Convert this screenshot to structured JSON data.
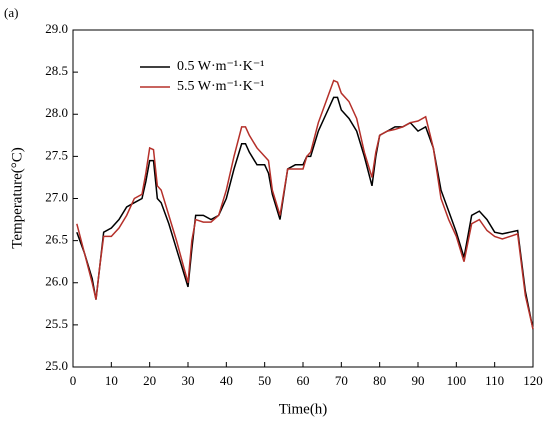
{
  "chart_data": {
    "type": "line",
    "panel_label": "(a)",
    "x_label": "Time(h)",
    "y_label": "Temperature(°C)",
    "x": [
      1,
      3,
      5,
      6,
      7,
      8,
      10,
      12,
      14,
      16,
      18,
      19,
      20,
      21,
      22,
      23,
      25,
      27,
      30,
      31,
      32,
      34,
      36,
      38,
      40,
      42,
      44,
      45,
      46,
      48,
      50,
      51,
      52,
      54,
      56,
      58,
      60,
      61,
      62,
      64,
      66,
      68,
      69,
      70,
      72,
      74,
      76,
      78,
      79,
      80,
      82,
      84,
      86,
      88,
      90,
      92,
      94,
      96,
      98,
      100,
      102,
      104,
      106,
      108,
      110,
      112,
      114,
      116,
      118,
      120
    ],
    "series": [
      {
        "name": "0.5 W·m⁻¹·K⁻¹",
        "color": "#000000",
        "values": [
          26.6,
          26.35,
          26.05,
          25.8,
          26.2,
          26.6,
          26.65,
          26.75,
          26.9,
          26.95,
          27.0,
          27.2,
          27.45,
          27.45,
          27.0,
          26.95,
          26.7,
          26.4,
          25.95,
          26.4,
          26.8,
          26.8,
          26.75,
          26.8,
          27.0,
          27.35,
          27.65,
          27.65,
          27.55,
          27.4,
          27.4,
          27.3,
          27.05,
          26.75,
          27.35,
          27.4,
          27.4,
          27.5,
          27.5,
          27.8,
          28.0,
          28.2,
          28.2,
          28.05,
          27.95,
          27.8,
          27.5,
          27.15,
          27.5,
          27.75,
          27.8,
          27.85,
          27.85,
          27.9,
          27.8,
          27.85,
          27.6,
          27.1,
          26.85,
          26.6,
          26.3,
          26.8,
          26.85,
          26.75,
          26.6,
          26.58,
          26.6,
          26.62,
          25.9,
          25.45
        ]
      },
      {
        "name": "5.5 W·m⁻¹·K⁻¹",
        "color": "#b5302a",
        "values": [
          26.7,
          26.35,
          26.0,
          25.8,
          26.2,
          26.55,
          26.55,
          26.65,
          26.8,
          27.0,
          27.05,
          27.3,
          27.6,
          27.58,
          27.15,
          27.1,
          26.8,
          26.5,
          26.0,
          26.5,
          26.75,
          26.72,
          26.72,
          26.8,
          27.1,
          27.5,
          27.85,
          27.85,
          27.75,
          27.6,
          27.5,
          27.45,
          27.1,
          26.8,
          27.35,
          27.35,
          27.35,
          27.5,
          27.55,
          27.9,
          28.15,
          28.4,
          28.38,
          28.25,
          28.15,
          27.95,
          27.55,
          27.25,
          27.55,
          27.75,
          27.8,
          27.82,
          27.85,
          27.9,
          27.92,
          27.97,
          27.6,
          27.0,
          26.75,
          26.55,
          26.25,
          26.7,
          26.75,
          26.62,
          26.55,
          26.52,
          26.55,
          26.58,
          25.85,
          25.45
        ]
      }
    ],
    "xlim": [
      0,
      120
    ],
    "xticks": [
      0,
      10,
      20,
      30,
      40,
      50,
      60,
      70,
      80,
      90,
      100,
      110,
      120
    ],
    "ylim": [
      25,
      29
    ],
    "yticks": [
      {
        "value": 25,
        "label": "25.0"
      },
      {
        "value": 25.5,
        "label": "25.5"
      },
      {
        "value": 26,
        "label": "26.0"
      },
      {
        "value": 26.5,
        "label": "26.5"
      },
      {
        "value": 27,
        "label": "27.0"
      },
      {
        "value": 27.5,
        "label": "27.5"
      },
      {
        "value": 28,
        "label": "28.0"
      },
      {
        "value": 28.5,
        "label": "28.5"
      },
      {
        "value": 29,
        "label": "29.0"
      }
    ],
    "grid": false,
    "legend": "upper left"
  }
}
